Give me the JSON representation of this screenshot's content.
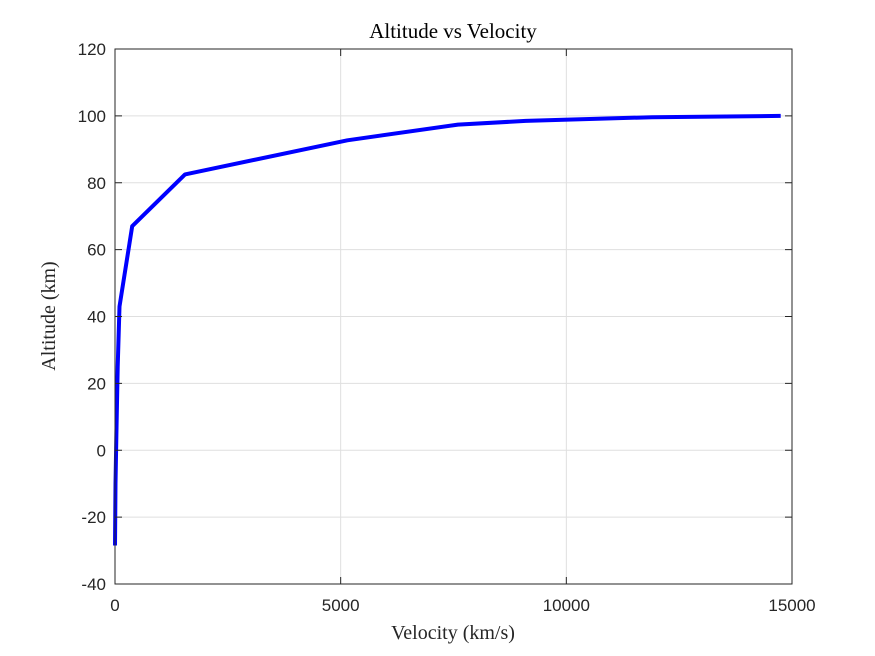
{
  "chart_data": {
    "type": "line",
    "title": "Altitude vs Velocity",
    "xlabel": "Velocity (km/s)",
    "ylabel": "Altitude (km)",
    "xlim": [
      0,
      15000
    ],
    "ylim": [
      -40,
      120
    ],
    "xticks": [
      0,
      5000,
      10000,
      15000
    ],
    "xtick_labels": [
      "0",
      "5000",
      "10000",
      "15000"
    ],
    "yticks": [
      -40,
      -20,
      0,
      20,
      40,
      60,
      80,
      100,
      120
    ],
    "ytick_labels": [
      "-40",
      "-20",
      "0",
      "20",
      "40",
      "60",
      "80",
      "100",
      "120"
    ],
    "grid": true,
    "series": [
      {
        "color": "#0000ff",
        "x": [
          0,
          10,
          30,
          60,
          100,
          380,
          1550,
          5150,
          7600,
          9100,
          11900,
          14750
        ],
        "y": [
          -28.5,
          -10,
          5,
          25,
          43,
          67,
          82.5,
          92.7,
          97.4,
          98.5,
          99.6,
          100
        ]
      }
    ]
  }
}
